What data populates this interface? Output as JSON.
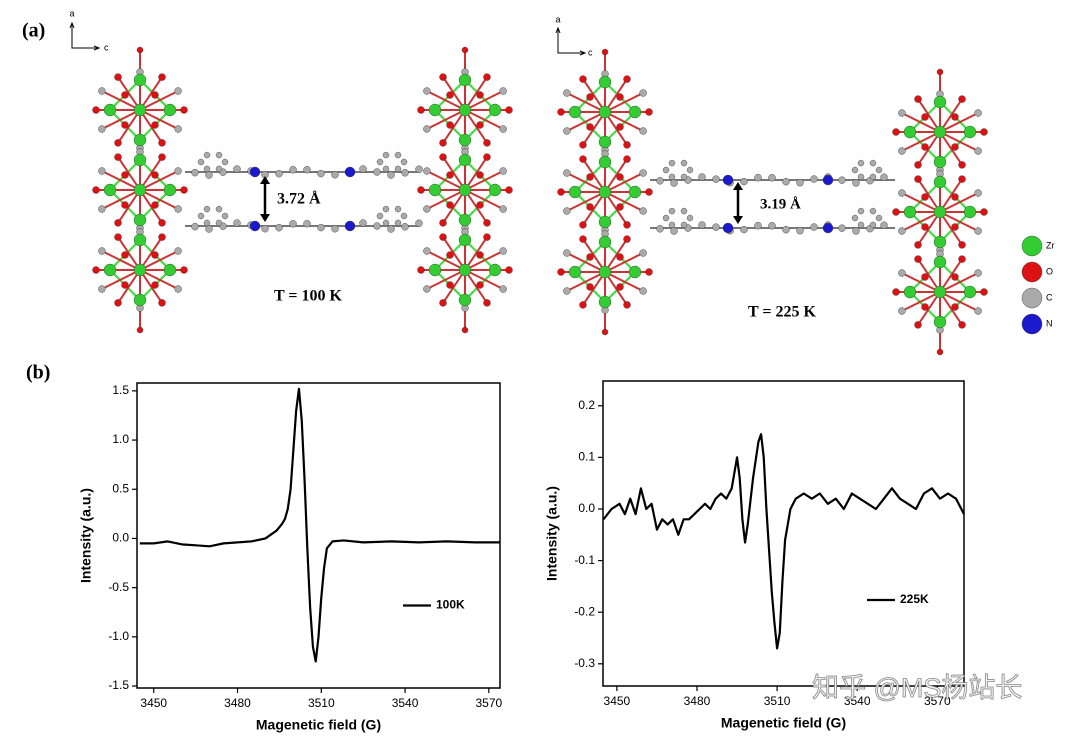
{
  "panel_labels": [
    "(a)",
    "(b)"
  ],
  "structures": [
    {
      "axes": [
        "a",
        "c"
      ],
      "distance": "3.72 Å",
      "temperature": "T = 100 K"
    },
    {
      "axes": [
        "a",
        "c"
      ],
      "distance": "3.19 Å",
      "temperature": "T = 225 K"
    }
  ],
  "element_legend": [
    "Zr",
    "O",
    "C",
    "N"
  ],
  "watermark": "知乎 @MS杨站长",
  "chart_data": [
    {
      "type": "line",
      "x_label": "Magenetic field (G)",
      "y_label": "Intensity (a.u.)",
      "xlim": [
        3444,
        3574
      ],
      "xticks": [
        3450,
        3480,
        3510,
        3540,
        3570
      ],
      "ylim": [
        -1.52,
        1.58
      ],
      "yticks": [
        1.5,
        {
          "value": 1,
          "label": "1.0"
        },
        0.5,
        {
          "value": 0,
          "label": "0.0"
        },
        -0.5,
        {
          "value": -1,
          "label": "-1.0"
        },
        -1.5
      ],
      "legend": "center right",
      "x": [
        3445,
        3450,
        3455,
        3460,
        3465,
        3470,
        3475,
        3480,
        3485,
        3490,
        3494,
        3496,
        3497,
        3498,
        3499,
        3500,
        3501,
        3502,
        3503,
        3504,
        3505,
        3506,
        3507,
        3508,
        3509,
        3510,
        3511,
        3512,
        3514,
        3518,
        3525,
        3535,
        3545,
        3555,
        3565,
        3574
      ],
      "series": [
        {
          "name": "100K",
          "color": "#000000",
          "values": [
            -0.05,
            -0.05,
            -0.03,
            -0.06,
            -0.07,
            -0.08,
            -0.05,
            -0.04,
            -0.03,
            0.0,
            0.08,
            0.15,
            0.2,
            0.3,
            0.5,
            0.9,
            1.3,
            1.52,
            1.2,
            0.6,
            -0.1,
            -0.7,
            -1.1,
            -1.25,
            -1.0,
            -0.6,
            -0.3,
            -0.1,
            -0.03,
            -0.02,
            -0.04,
            -0.03,
            -0.04,
            -0.03,
            -0.04,
            -0.04
          ]
        }
      ]
    },
    {
      "type": "line",
      "x_label": "Magenetic field (G)",
      "y_label": "Intensity (a.u.)",
      "xlim": [
        3444.8,
        3580
      ],
      "xticks": [
        3450,
        3480,
        3510,
        3540,
        3570
      ],
      "ylim": [
        -0.343,
        0.248
      ],
      "yticks": [
        0.2,
        0.1,
        {
          "value": 0,
          "label": "0.0"
        },
        -0.1,
        -0.2,
        -0.3
      ],
      "legend": "lower right",
      "x": [
        3445,
        3448,
        3451,
        3453,
        3455,
        3457,
        3459,
        3461,
        3463,
        3465,
        3467,
        3469,
        3471,
        3473,
        3475,
        3477,
        3479,
        3481,
        3483,
        3485,
        3487,
        3489,
        3491,
        3493,
        3495,
        3496,
        3497,
        3498,
        3499,
        3501,
        3503,
        3504,
        3505,
        3506,
        3507,
        3508,
        3509,
        3510,
        3511,
        3512,
        3513,
        3515,
        3517,
        3520,
        3523,
        3526,
        3529,
        3532,
        3535,
        3538,
        3541,
        3544,
        3547,
        3550,
        3553,
        3556,
        3559,
        3562,
        3565,
        3568,
        3571,
        3574,
        3577,
        3580
      ],
      "series": [
        {
          "name": "225K",
          "color": "#000000",
          "values": [
            -0.02,
            0.0,
            0.01,
            -0.01,
            0.02,
            -0.01,
            0.04,
            0.0,
            0.01,
            -0.04,
            -0.02,
            -0.03,
            -0.02,
            -0.05,
            -0.02,
            -0.02,
            -0.01,
            0.0,
            0.01,
            0.0,
            0.02,
            0.03,
            0.02,
            0.04,
            0.1,
            0.06,
            -0.02,
            -0.065,
            -0.03,
            0.06,
            0.13,
            0.145,
            0.1,
            0.0,
            -0.08,
            -0.16,
            -0.22,
            -0.27,
            -0.24,
            -0.14,
            -0.06,
            0.0,
            0.02,
            0.03,
            0.02,
            0.03,
            0.01,
            0.02,
            0.0,
            0.03,
            0.02,
            0.01,
            0.0,
            0.02,
            0.04,
            0.02,
            0.01,
            0.0,
            0.03,
            0.04,
            0.02,
            0.03,
            0.02,
            -0.01
          ]
        }
      ]
    }
  ]
}
